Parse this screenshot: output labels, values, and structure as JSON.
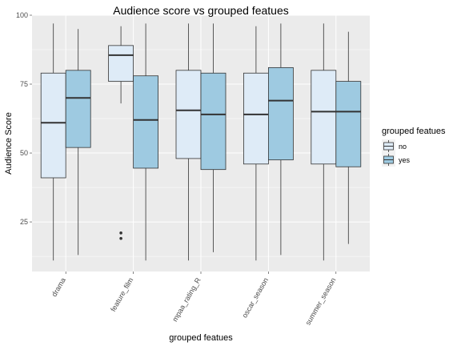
{
  "chart_data": {
    "type": "boxplot",
    "title": "Audience score vs grouped featues",
    "xlabel": "grouped featues",
    "ylabel": "Audience Score",
    "ylim": [
      7,
      100
    ],
    "yticks": [
      25,
      50,
      75,
      100
    ],
    "grid": true,
    "legend": {
      "title": "grouped featues",
      "position": "right",
      "entries": [
        {
          "label": "no",
          "color": "#deebf7"
        },
        {
          "label": "yes",
          "color": "#9ecae1"
        }
      ]
    },
    "categories": [
      "drama",
      "feature_film",
      "mpaa_rating_R",
      "oscar_season",
      "summer_season"
    ],
    "series": [
      {
        "name": "no",
        "color": "#deebf7",
        "boxes": [
          {
            "whisker_low": 11,
            "q1": 41,
            "median": 61,
            "q3": 79,
            "whisker_high": 97,
            "outliers": []
          },
          {
            "whisker_low": 68,
            "q1": 76,
            "median": 85.5,
            "q3": 89,
            "whisker_high": 96,
            "outliers": [
              19,
              21
            ]
          },
          {
            "whisker_low": 11,
            "q1": 48,
            "median": 65.5,
            "q3": 80,
            "whisker_high": 97,
            "outliers": []
          },
          {
            "whisker_low": 11,
            "q1": 46,
            "median": 64,
            "q3": 79,
            "whisker_high": 96,
            "outliers": []
          },
          {
            "whisker_low": 11,
            "q1": 46,
            "median": 65,
            "q3": 80,
            "whisker_high": 97,
            "outliers": []
          }
        ]
      },
      {
        "name": "yes",
        "color": "#9ecae1",
        "boxes": [
          {
            "whisker_low": 13,
            "q1": 52,
            "median": 70,
            "q3": 80,
            "whisker_high": 95,
            "outliers": []
          },
          {
            "whisker_low": 11,
            "q1": 44.5,
            "median": 62,
            "q3": 78,
            "whisker_high": 97,
            "outliers": []
          },
          {
            "whisker_low": 14,
            "q1": 44,
            "median": 64,
            "q3": 79,
            "whisker_high": 97,
            "outliers": []
          },
          {
            "whisker_low": 13,
            "q1": 47.5,
            "median": 69,
            "q3": 81,
            "whisker_high": 97,
            "outliers": []
          },
          {
            "whisker_low": 17,
            "q1": 45,
            "median": 65,
            "q3": 76,
            "whisker_high": 94,
            "outliers": []
          }
        ]
      }
    ]
  },
  "colors": {
    "panel_background": "#ebebeb",
    "grid_line": "#ffffff",
    "box_outline": "#333333"
  }
}
